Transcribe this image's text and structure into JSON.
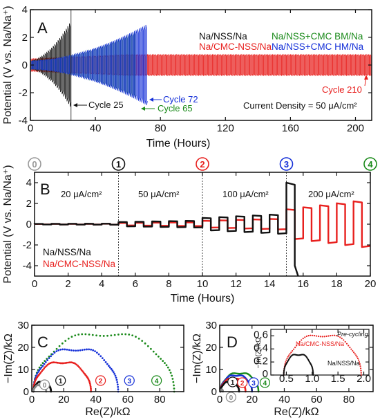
{
  "chart_data": [
    {
      "panel": "A",
      "type": "line",
      "xlabel": "Time (Hours)",
      "ylabel": "Potential (V vs. Na/Na⁺)",
      "xlim": [
        0,
        210
      ],
      "ylim": [
        -4,
        4
      ],
      "xticks": [
        "0",
        "40",
        "80",
        "120",
        "160",
        "200"
      ],
      "yticks": [
        "-4",
        "-2",
        "0",
        "2",
        "4"
      ],
      "series": [
        {
          "name": "Na/NSS/Na",
          "color": "#111111",
          "end_hours": 25,
          "max_amplitude_V": 3.0
        },
        {
          "name": "Na/CMC-NSS/Na",
          "color": "#e8201e",
          "end_hours": 210,
          "max_amplitude_V": 0.75
        },
        {
          "name": "Na/NSS+CMC BM/Na",
          "color": "#1a8a1a",
          "end_hours": 65,
          "max_amplitude_V": 2.4
        },
        {
          "name": "Na/NSS+CMC HM/Na",
          "color": "#1530d8",
          "end_hours": 72,
          "max_amplitude_V": 2.9
        }
      ],
      "annotations": [
        "Cycle 25",
        "Cycle 72",
        "Cycle 65",
        "Cycle 210",
        "Current Density = 50 μA/cm²"
      ]
    },
    {
      "panel": "B",
      "type": "line",
      "xlabel": "Time (Hours)",
      "ylabel": "Potential (V vs. Na/Na⁺)",
      "xlim": [
        0,
        20
      ],
      "ylim": [
        -5,
        5
      ],
      "xticks": [
        "0",
        "2",
        "4",
        "6",
        "8",
        "10",
        "12",
        "14",
        "16",
        "18",
        "20"
      ],
      "yticks": [
        "-4",
        "-2",
        "0",
        "2",
        "4"
      ],
      "regions": [
        "20 μA/cm²",
        "50 μA/cm²",
        "100 μA/cm²",
        "200 μA/cm²"
      ],
      "markers": [
        "0",
        "1",
        "2",
        "3",
        "4"
      ],
      "series": [
        {
          "name": "Na/NSS/Na",
          "color": "#111111",
          "end_hours": 15.7,
          "amplitudes_V": [
            0.05,
            0.35,
            1.0,
            4.0
          ]
        },
        {
          "name": "Na/CMC-NSS/Na",
          "color": "#e8201e",
          "end_hours": 20,
          "amplitudes_V": [
            0.04,
            0.2,
            0.55,
            2.4
          ]
        }
      ]
    },
    {
      "panel": "C",
      "type": "scatter",
      "xlabel": "Re(Z)/kΩ",
      "ylabel": "−Im(Z)/kΩ",
      "xlim": [
        0,
        95
      ],
      "ylim": [
        0,
        30
      ],
      "xticks": [
        "0",
        "20",
        "40",
        "60",
        "80"
      ],
      "yticks": [
        "0",
        "10",
        "20",
        "30"
      ],
      "series": [
        {
          "name": "0",
          "color": "#888888",
          "arc_kohm": [
            1,
            9
          ],
          "peak": 3.0
        },
        {
          "name": "1",
          "color": "#111111",
          "arc_kohm": [
            1,
            12
          ],
          "peak": 4.5
        },
        {
          "name": "2",
          "color": "#e8201e",
          "arc_kohm": [
            1,
            37
          ],
          "peak": 13.5
        },
        {
          "name": "3",
          "color": "#1530d8",
          "arc_kohm": [
            1,
            54
          ],
          "peak": 19.5
        },
        {
          "name": "4",
          "color": "#1a8a1a",
          "arc_kohm": [
            1,
            89
          ],
          "peak": 26.5
        }
      ]
    },
    {
      "panel": "D",
      "type": "scatter",
      "xlabel": "Re(Z)/kΩ",
      "ylabel": "−Im(Z)/kΩ",
      "xlim": [
        0,
        95
      ],
      "ylim": [
        0,
        30
      ],
      "xticks": [
        "0",
        "20",
        "40",
        "60",
        "80"
      ],
      "yticks": [
        "0",
        "10",
        "20",
        "30"
      ],
      "series": [
        {
          "name": "0",
          "color": "#888888",
          "arc_kohm": [
            0.5,
            2
          ],
          "peak": 1.0
        },
        {
          "name": "1",
          "color": "#111111",
          "arc_kohm": [
            0.5,
            12
          ],
          "peak": 4.5
        },
        {
          "name": "2",
          "color": "#e8201e",
          "arc_kohm": [
            0.5,
            16
          ],
          "peak": 6.0
        },
        {
          "name": "3",
          "color": "#1530d8",
          "arc_kohm": [
            0.5,
            20
          ],
          "peak": 7.5
        },
        {
          "name": "4",
          "color": "#1a8a1a",
          "arc_kohm": [
            0.5,
            24
          ],
          "peak": 8.5
        }
      ],
      "inset": {
        "ylabel": "−Im(Z)/kΩ",
        "xlim": [
          0.2,
          2.1
        ],
        "ylim": [
          0,
          0.7
        ],
        "xticks": [
          "0.5",
          "1.0",
          "1.5",
          "2.0"
        ],
        "yticks": [
          "0",
          "0.2",
          "0.4",
          "0.6"
        ],
        "annotation": "Pre-cycling",
        "series": [
          {
            "name": "Na/CMC-NSS/Na",
            "color": "#e8201e",
            "arc": [
              0.45,
              1.95
            ],
            "peak": 0.62
          },
          {
            "name": "Na/NSS/Na",
            "color": "#111111",
            "arc": [
              0.45,
              1.02
            ],
            "peak": 0.32
          }
        ]
      }
    }
  ]
}
